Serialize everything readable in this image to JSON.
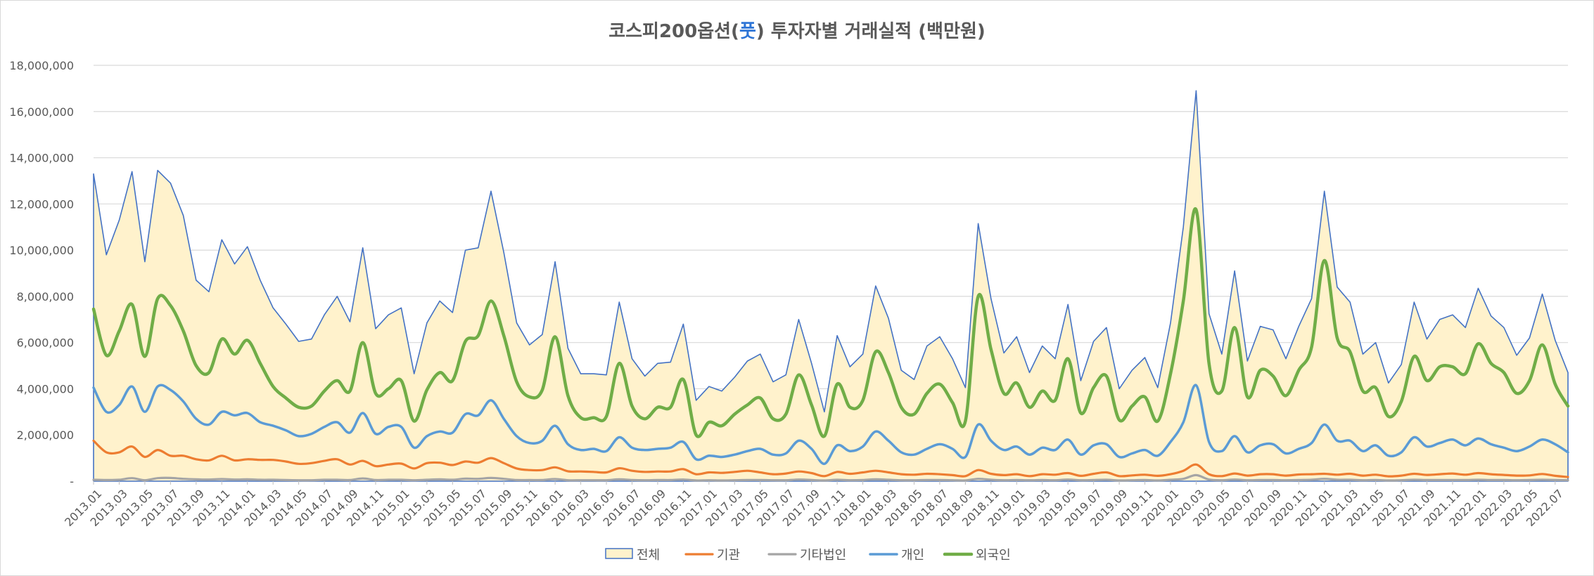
{
  "chart_data": {
    "type": "area",
    "title_parts": [
      "코스피200옵션(",
      "풋",
      ") 투자자별 거래실적 (백만원)"
    ],
    "title": "코스피200옵션(풋) 투자자별 거래실적 (백만원)",
    "y_ticks": [
      "-",
      "2,000,000",
      "4,000,000",
      "6,000,000",
      "8,000,000",
      "10,000,000",
      "12,000,000",
      "14,000,000",
      "16,000,000",
      "18,000,000"
    ],
    "ylim": [
      0,
      18000000
    ],
    "grid": true,
    "legend_position": "bottom",
    "x": [
      "2013.01",
      "2013.02",
      "2013.03",
      "2013.04",
      "2013.05",
      "2013.06",
      "2013.07",
      "2013.08",
      "2013.09",
      "2013.10",
      "2013.11",
      "2013.12",
      "2014.01",
      "2014.02",
      "2014.03",
      "2014.04",
      "2014.05",
      "2014.06",
      "2014.07",
      "2014.08",
      "2014.09",
      "2014.10",
      "2014.11",
      "2014.12",
      "2015.01",
      "2015.02",
      "2015.03",
      "2015.04",
      "2015.05",
      "2015.06",
      "2015.07",
      "2015.08",
      "2015.09",
      "2015.10",
      "2015.11",
      "2015.12",
      "2016.01",
      "2016.02",
      "2016.03",
      "2016.04",
      "2016.05",
      "2016.06",
      "2016.07",
      "2016.08",
      "2016.09",
      "2016.10",
      "2016.11",
      "2016.12",
      "2017.01",
      "2017.02",
      "2017.03",
      "2017.04",
      "2017.05",
      "2017.06",
      "2017.07",
      "2017.08",
      "2017.09",
      "2017.10",
      "2017.11",
      "2017.12",
      "2018.01",
      "2018.02",
      "2018.03",
      "2018.04",
      "2018.05",
      "2018.06",
      "2018.07",
      "2018.08",
      "2018.09",
      "2018.10",
      "2018.11",
      "2018.12",
      "2019.01",
      "2019.02",
      "2019.03",
      "2019.04",
      "2019.05",
      "2019.06",
      "2019.07",
      "2019.08",
      "2019.09",
      "2019.10",
      "2019.11",
      "2019.12",
      "2020.01",
      "2020.02",
      "2020.03",
      "2020.04",
      "2020.05",
      "2020.06",
      "2020.07",
      "2020.08",
      "2020.09",
      "2020.10",
      "2020.11",
      "2020.12",
      "2021.01",
      "2021.02",
      "2021.03",
      "2021.04",
      "2021.05",
      "2021.06",
      "2021.07",
      "2021.08",
      "2021.09",
      "2021.10",
      "2021.11",
      "2021.12",
      "2022.01",
      "2022.02",
      "2022.03",
      "2022.04",
      "2022.05",
      "2022.06",
      "2022.07",
      "2022.08"
    ],
    "x_tick_labels": [
      "2013.01",
      "2013.03",
      "2013.05",
      "2013.07",
      "2013.09",
      "2013.11",
      "2014.01",
      "2014.03",
      "2014.05",
      "2014.07",
      "2014.09",
      "2014.11",
      "2015.01",
      "2015.03",
      "2015.05",
      "2015.07",
      "2015.09",
      "2015.11",
      "2016.01",
      "2016.03",
      "2016.05",
      "2016.07",
      "2016.09",
      "2016.11",
      "2017.01",
      "2017.03",
      "2017.05",
      "2017.07",
      "2017.09",
      "2017.11",
      "2018.01",
      "2018.03",
      "2018.05",
      "2018.07",
      "2018.09",
      "2018.11",
      "2019.01",
      "2019.03",
      "2019.05",
      "2019.07",
      "2019.09",
      "2019.11",
      "2020.01",
      "2020.03",
      "2020.05",
      "2020.07",
      "2020.09",
      "2020.11",
      "2021.01",
      "2021.03",
      "2021.05",
      "2021.07",
      "2021.09",
      "2021.11",
      "2022.01",
      "2022.03",
      "2022.05",
      "2022.07"
    ],
    "series": [
      {
        "name": "전체",
        "kind": "area",
        "color": "#4472C4",
        "fill": "#FFF2CC",
        "values": [
          13300000,
          9800000,
          11300000,
          13400000,
          9500000,
          13450000,
          12900000,
          11500000,
          8700000,
          8200000,
          10450000,
          9400000,
          10150000,
          8700000,
          7500000,
          6800000,
          6050000,
          6150000,
          7200000,
          8000000,
          6900000,
          10100000,
          6600000,
          7200000,
          7500000,
          4650000,
          6850000,
          7800000,
          7300000,
          10000000,
          10100000,
          12550000,
          9900000,
          6850000,
          5900000,
          6350000,
          9500000,
          5750000,
          4650000,
          4650000,
          4600000,
          7750000,
          5300000,
          4550000,
          5100000,
          5150000,
          6800000,
          3500000,
          4100000,
          3900000,
          4500000,
          5200000,
          5500000,
          4300000,
          4600000,
          7000000,
          5100000,
          3000000,
          6300000,
          4950000,
          5500000,
          8450000,
          7050000,
          4800000,
          4400000,
          5850000,
          6250000,
          5300000,
          4050000,
          11150000,
          7900000,
          5550000,
          6250000,
          4700000,
          5850000,
          5300000,
          7650000,
          4350000,
          6050000,
          6650000,
          4000000,
          4800000,
          5350000,
          4050000,
          6850000,
          11000000,
          16900000,
          7250000,
          5500000,
          9100000,
          5200000,
          6700000,
          6550000,
          5300000,
          6700000,
          7900000,
          12550000,
          8400000,
          7750000,
          5500000,
          6000000,
          4250000,
          5050000,
          7750000,
          6150000,
          7000000,
          7200000,
          6650000,
          8350000,
          7150000,
          6650000,
          5450000,
          6200000,
          8100000,
          6100000,
          4700000
        ]
      },
      {
        "name": "기관",
        "kind": "line",
        "color": "#ED7D31",
        "width": 3.2,
        "values": [
          1750000,
          1250000,
          1250000,
          1500000,
          1050000,
          1350000,
          1100000,
          1100000,
          950000,
          900000,
          1100000,
          900000,
          950000,
          920000,
          920000,
          850000,
          750000,
          780000,
          880000,
          950000,
          720000,
          880000,
          650000,
          720000,
          760000,
          550000,
          780000,
          800000,
          700000,
          850000,
          800000,
          1000000,
          780000,
          550000,
          480000,
          480000,
          600000,
          430000,
          420000,
          400000,
          380000,
          560000,
          450000,
          400000,
          420000,
          420000,
          520000,
          300000,
          380000,
          360000,
          400000,
          450000,
          380000,
          300000,
          330000,
          420000,
          350000,
          220000,
          400000,
          320000,
          380000,
          450000,
          380000,
          300000,
          280000,
          320000,
          300000,
          260000,
          220000,
          480000,
          320000,
          260000,
          300000,
          220000,
          300000,
          280000,
          350000,
          230000,
          320000,
          380000,
          220000,
          250000,
          280000,
          230000,
          300000,
          450000,
          720000,
          300000,
          220000,
          330000,
          240000,
          300000,
          300000,
          240000,
          290000,
          300000,
          320000,
          280000,
          320000,
          240000,
          280000,
          210000,
          240000,
          320000,
          270000,
          300000,
          330000,
          280000,
          350000,
          300000,
          270000,
          240000,
          250000,
          310000,
          230000,
          180000
        ]
      },
      {
        "name": "기타법인",
        "kind": "line",
        "color": "#A5A5A5",
        "width": 3.2,
        "values": [
          60000,
          50000,
          60000,
          130000,
          40000,
          130000,
          140000,
          100000,
          80000,
          70000,
          90000,
          70000,
          80000,
          60000,
          60000,
          50000,
          40000,
          40000,
          60000,
          60000,
          50000,
          120000,
          50000,
          60000,
          60000,
          40000,
          60000,
          80000,
          60000,
          110000,
          100000,
          140000,
          100000,
          50000,
          50000,
          50000,
          90000,
          40000,
          40000,
          40000,
          40000,
          80000,
          50000,
          40000,
          50000,
          50000,
          70000,
          30000,
          40000,
          30000,
          40000,
          50000,
          50000,
          40000,
          40000,
          70000,
          50000,
          30000,
          60000,
          40000,
          50000,
          80000,
          60000,
          40000,
          40000,
          50000,
          50000,
          40000,
          30000,
          100000,
          60000,
          40000,
          50000,
          40000,
          50000,
          40000,
          70000,
          40000,
          50000,
          60000,
          30000,
          40000,
          50000,
          30000,
          60000,
          100000,
          260000,
          70000,
          40000,
          70000,
          40000,
          50000,
          50000,
          40000,
          50000,
          60000,
          100000,
          60000,
          60000,
          40000,
          50000,
          30000,
          40000,
          60000,
          50000,
          50000,
          50000,
          50000,
          60000,
          50000,
          50000,
          40000,
          50000,
          60000,
          50000,
          40000
        ]
      },
      {
        "name": "개인",
        "kind": "line",
        "color": "#5B9BD5",
        "width": 3.5,
        "values": [
          4050000,
          3000000,
          3300000,
          4100000,
          3000000,
          4100000,
          3950000,
          3450000,
          2700000,
          2450000,
          3000000,
          2850000,
          2950000,
          2550000,
          2400000,
          2200000,
          1950000,
          2050000,
          2350000,
          2550000,
          2100000,
          2950000,
          2050000,
          2350000,
          2350000,
          1450000,
          1950000,
          2150000,
          2100000,
          2900000,
          2850000,
          3500000,
          2700000,
          1950000,
          1650000,
          1750000,
          2400000,
          1600000,
          1350000,
          1400000,
          1300000,
          1900000,
          1450000,
          1350000,
          1400000,
          1450000,
          1700000,
          950000,
          1100000,
          1050000,
          1150000,
          1300000,
          1400000,
          1150000,
          1200000,
          1750000,
          1400000,
          750000,
          1550000,
          1300000,
          1500000,
          2150000,
          1750000,
          1250000,
          1150000,
          1400000,
          1600000,
          1400000,
          1050000,
          2450000,
          1750000,
          1350000,
          1500000,
          1150000,
          1450000,
          1350000,
          1800000,
          1150000,
          1550000,
          1600000,
          1050000,
          1200000,
          1350000,
          1100000,
          1700000,
          2550000,
          4150000,
          1700000,
          1300000,
          1950000,
          1250000,
          1550000,
          1600000,
          1200000,
          1400000,
          1650000,
          2450000,
          1750000,
          1750000,
          1300000,
          1550000,
          1100000,
          1250000,
          1900000,
          1500000,
          1650000,
          1800000,
          1550000,
          1850000,
          1600000,
          1450000,
          1300000,
          1500000,
          1800000,
          1600000,
          1250000
        ]
      },
      {
        "name": "외국인",
        "kind": "line",
        "color": "#70AD47",
        "width": 4.5,
        "values": [
          7450000,
          5450000,
          6500000,
          7650000,
          5400000,
          7900000,
          7600000,
          6500000,
          5000000,
          4700000,
          6150000,
          5500000,
          6100000,
          5100000,
          4100000,
          3600000,
          3200000,
          3250000,
          3900000,
          4350000,
          3900000,
          6000000,
          3800000,
          4000000,
          4350000,
          2600000,
          3950000,
          4700000,
          4350000,
          6050000,
          6300000,
          7800000,
          6300000,
          4300000,
          3650000,
          3950000,
          6250000,
          3700000,
          2750000,
          2750000,
          2800000,
          5100000,
          3250000,
          2700000,
          3200000,
          3200000,
          4400000,
          2000000,
          2550000,
          2400000,
          2900000,
          3300000,
          3600000,
          2700000,
          2900000,
          4600000,
          3300000,
          1950000,
          4200000,
          3200000,
          3500000,
          5600000,
          4700000,
          3200000,
          2900000,
          3800000,
          4200000,
          3400000,
          2600000,
          8000000,
          5700000,
          3800000,
          4250000,
          3200000,
          3900000,
          3500000,
          5300000,
          2950000,
          4050000,
          4550000,
          2650000,
          3250000,
          3650000,
          2600000,
          4650000,
          7800000,
          11750000,
          5100000,
          3900000,
          6650000,
          3650000,
          4800000,
          4550000,
          3700000,
          4800000,
          5800000,
          9550000,
          6200000,
          5600000,
          3900000,
          4050000,
          2800000,
          3450000,
          5400000,
          4350000,
          4950000,
          4950000,
          4650000,
          5950000,
          5100000,
          4700000,
          3800000,
          4350000,
          5900000,
          4200000,
          3250000
        ]
      }
    ]
  }
}
